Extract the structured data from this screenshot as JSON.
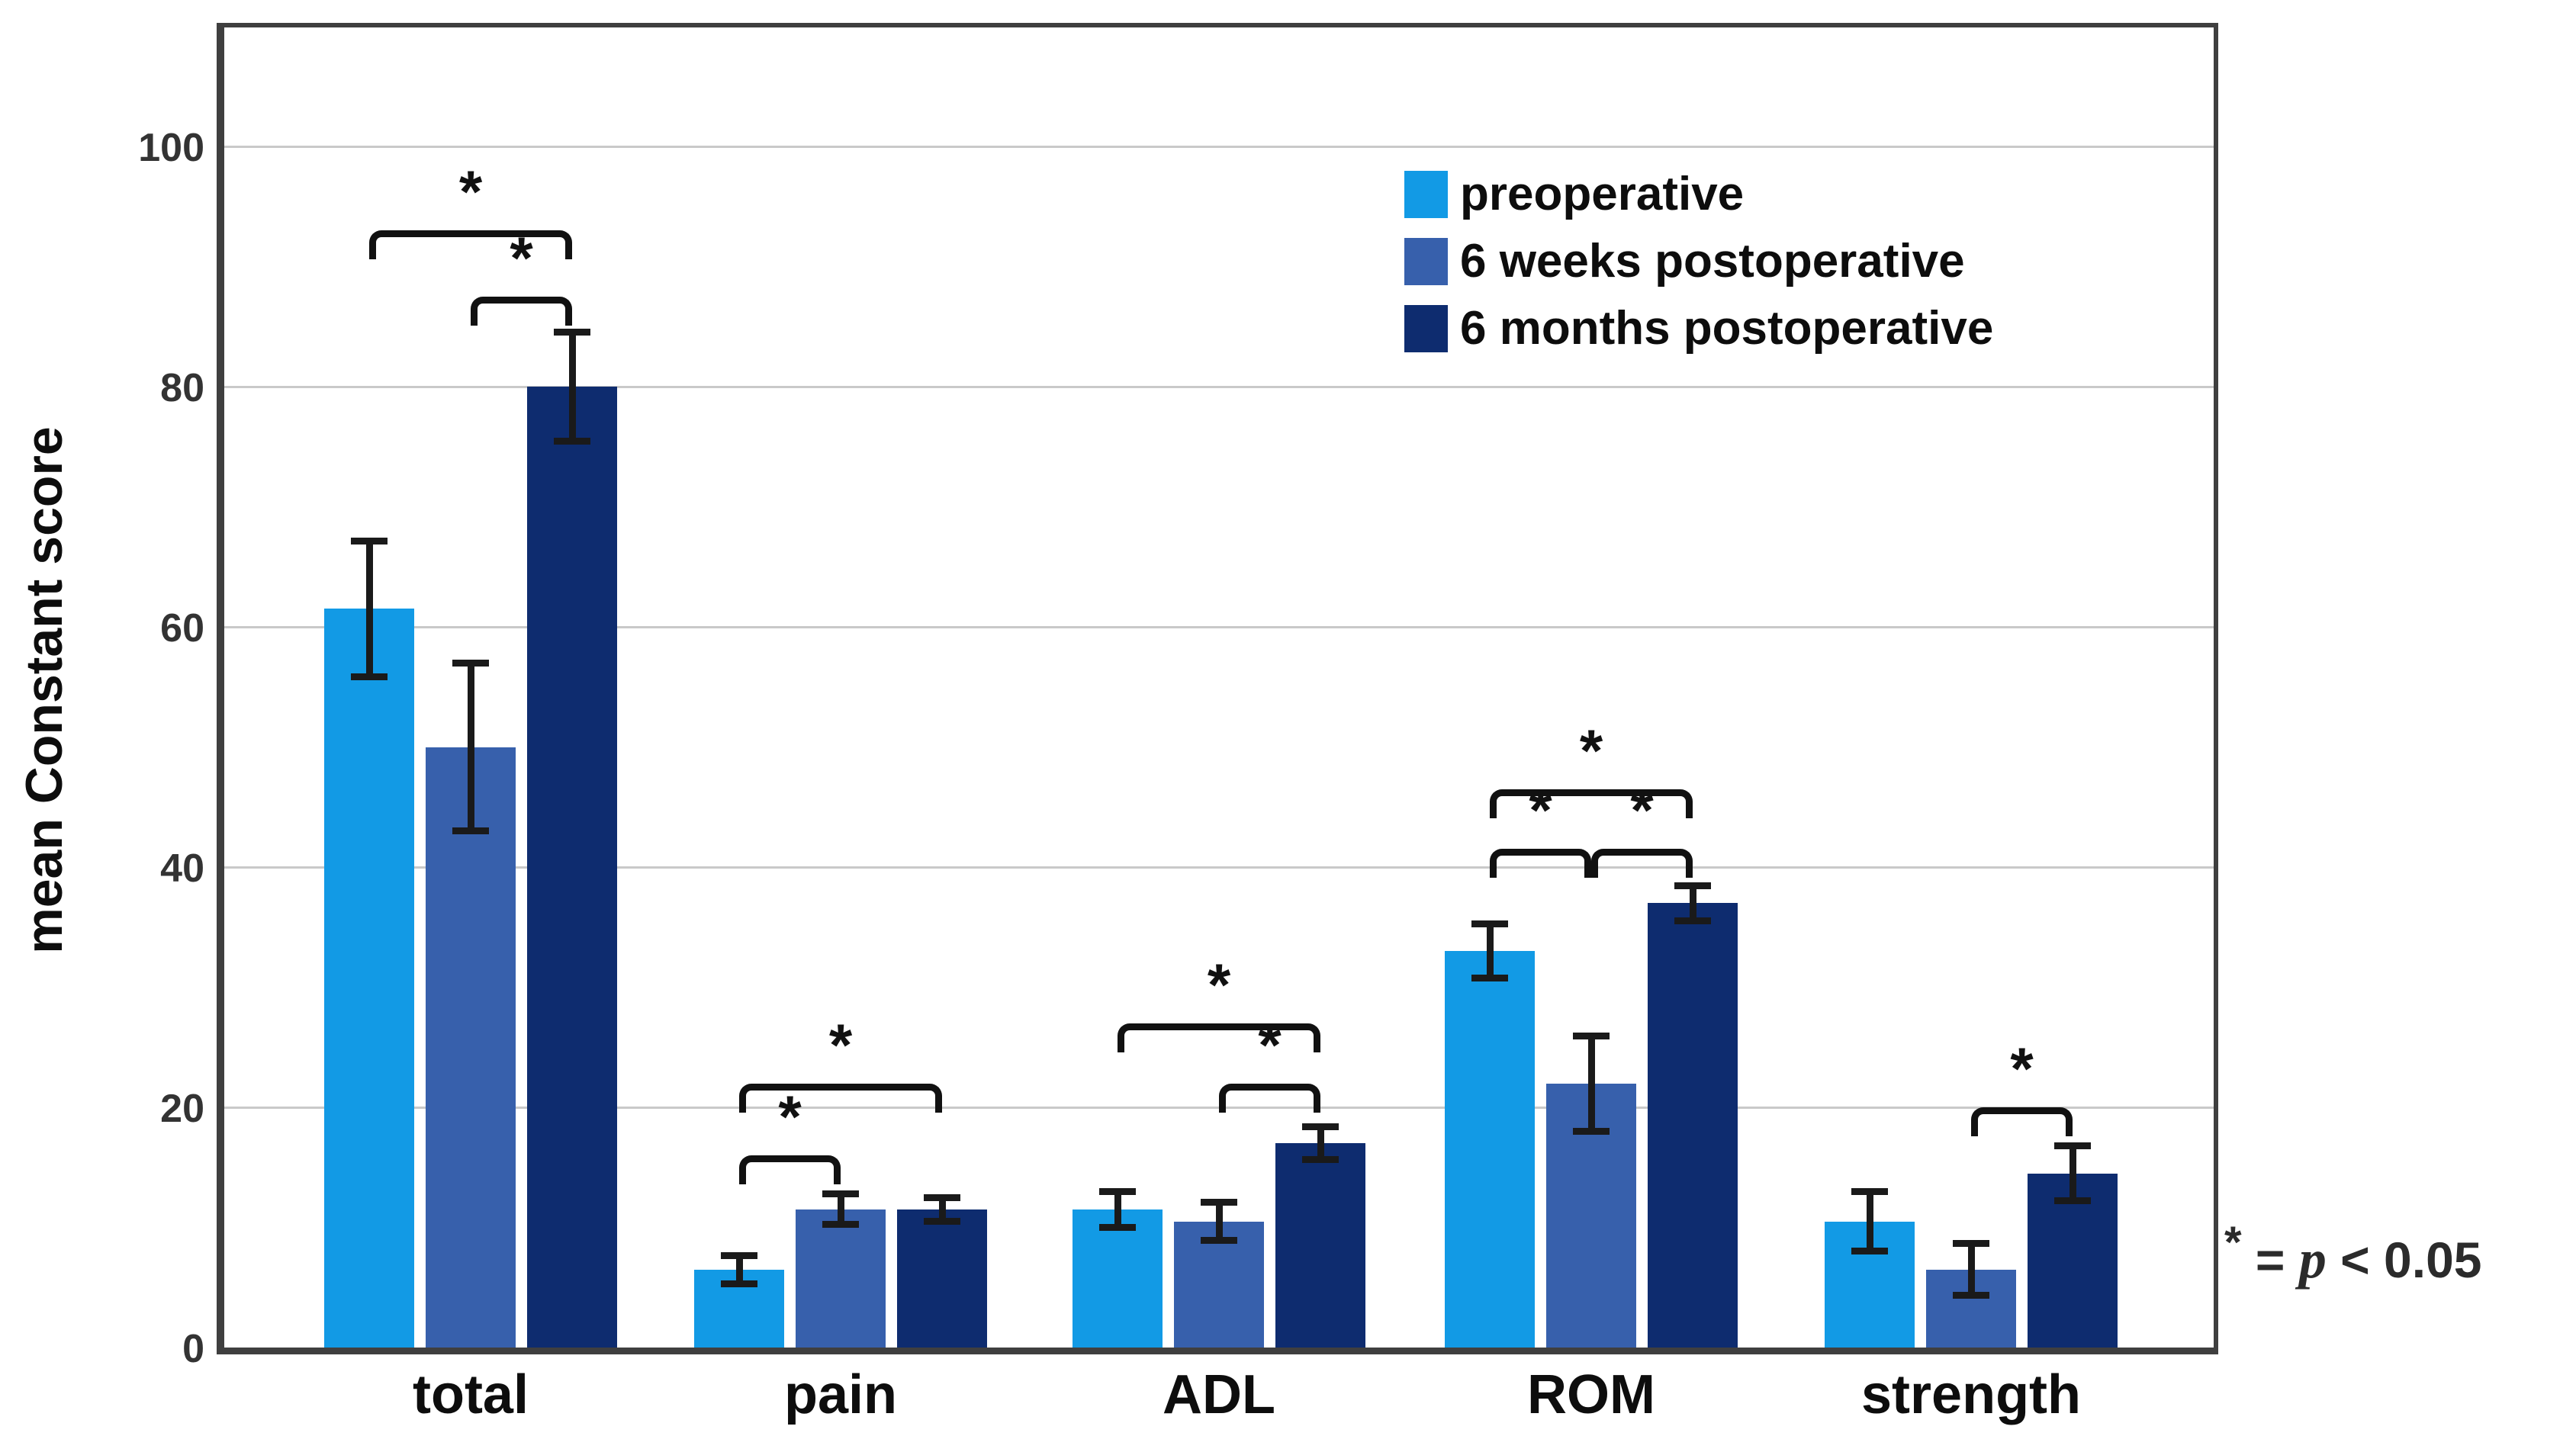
{
  "chart_data": {
    "type": "bar",
    "title": "",
    "xlabel": "",
    "ylabel": "mean Constant score",
    "ylim": [
      0,
      110
    ],
    "yticks": [
      0,
      20,
      40,
      60,
      80,
      100
    ],
    "grid": "horizontal",
    "legend_position": "top-right-inside",
    "categories": [
      "total",
      "pain",
      "ADL",
      "ROM",
      "strength"
    ],
    "series": [
      {
        "name": "preoperative",
        "color": "#129AE5",
        "values": [
          61.5,
          6.5,
          11.5,
          33,
          10.5
        ],
        "errors": [
          5.7,
          1.2,
          1.5,
          2.3,
          2.5
        ]
      },
      {
        "name": "6 weeks postoperative",
        "color": "#3760AC",
        "values": [
          50,
          11.5,
          10.5,
          22,
          6.5
        ],
        "errors": [
          7,
          1.3,
          1.6,
          4,
          2.2
        ]
      },
      {
        "name": "6 months postoperative",
        "color": "#0E2C6F",
        "values": [
          80,
          11.5,
          17,
          37,
          14.5
        ],
        "errors": [
          4.6,
          1.0,
          1.4,
          1.5,
          2.3
        ]
      }
    ],
    "significance_brackets": [
      {
        "category": "total",
        "from": 0,
        "to": 2,
        "y": 93,
        "label": "*"
      },
      {
        "category": "total",
        "from": 1,
        "to": 2,
        "y": 87.5,
        "label": "*"
      },
      {
        "category": "pain",
        "from": 0,
        "to": 1,
        "y": 16,
        "label": "*"
      },
      {
        "category": "pain",
        "from": 0,
        "to": 2,
        "y": 22,
        "label": "*"
      },
      {
        "category": "ADL",
        "from": 1,
        "to": 2,
        "y": 22,
        "label": "*"
      },
      {
        "category": "ADL",
        "from": 0,
        "to": 2,
        "y": 27,
        "label": "*"
      },
      {
        "category": "ROM",
        "from": 0,
        "to": 1,
        "y": 41.5,
        "label": "*"
      },
      {
        "category": "ROM",
        "from": 1,
        "to": 2,
        "y": 41.5,
        "label": "*"
      },
      {
        "category": "ROM",
        "from": 0,
        "to": 2,
        "y": 46.5,
        "label": "*"
      },
      {
        "category": "strength",
        "from": 1,
        "to": 2,
        "y": 20,
        "label": "*"
      }
    ],
    "footnote": "* = p < 0.05"
  },
  "footnote_parts": {
    "star": "*",
    "equals": "=",
    "p": "p",
    "comparison": "< 0.05"
  },
  "colors": {
    "axis": "#3f3f3f",
    "gridline": "#c9c9c9",
    "error_bar": "#1a1a1a",
    "bracket": "#111111",
    "tick_text": "#333333",
    "label_text": "#0d0d0d"
  }
}
